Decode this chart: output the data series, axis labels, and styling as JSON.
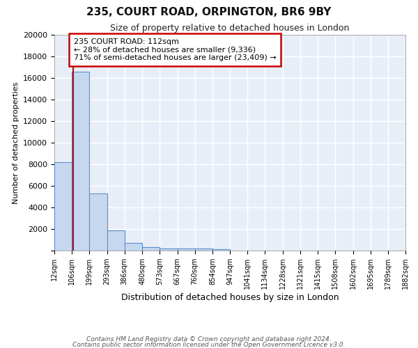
{
  "title": "235, COURT ROAD, ORPINGTON, BR6 9BY",
  "subtitle": "Size of property relative to detached houses in London",
  "xlabel": "Distribution of detached houses by size in London",
  "ylabel": "Number of detached properties",
  "annotation_title": "235 COURT ROAD: 112sqm",
  "annotation_line1": "← 28% of detached houses are smaller (9,336)",
  "annotation_line2": "71% of semi-detached houses are larger (23,409) →",
  "footnote1": "Contains HM Land Registry data © Crown copyright and database right 2024.",
  "footnote2": "Contains public sector information licensed under the Open Government Licence v3.0.",
  "property_sqm": 112,
  "bin_edges": [
    12,
    106,
    199,
    293,
    386,
    480,
    573,
    667,
    760,
    854,
    947,
    1041,
    1134,
    1228,
    1321,
    1415,
    1508,
    1602,
    1695,
    1789,
    1882
  ],
  "bar_heights": [
    8200,
    16600,
    5300,
    1850,
    700,
    300,
    220,
    190,
    180,
    120,
    0,
    0,
    0,
    0,
    0,
    0,
    0,
    0,
    0,
    0
  ],
  "bar_color": "#c5d8f0",
  "bar_edge_color": "#5b8fcc",
  "marker_color": "#cc0000",
  "background_color": "#e8eef8",
  "grid_color": "#ffffff",
  "annotation_box_edge": "#cc0000",
  "ylim": [
    0,
    20000
  ],
  "yticks": [
    0,
    2000,
    4000,
    6000,
    8000,
    10000,
    12000,
    14000,
    16000,
    18000,
    20000
  ]
}
